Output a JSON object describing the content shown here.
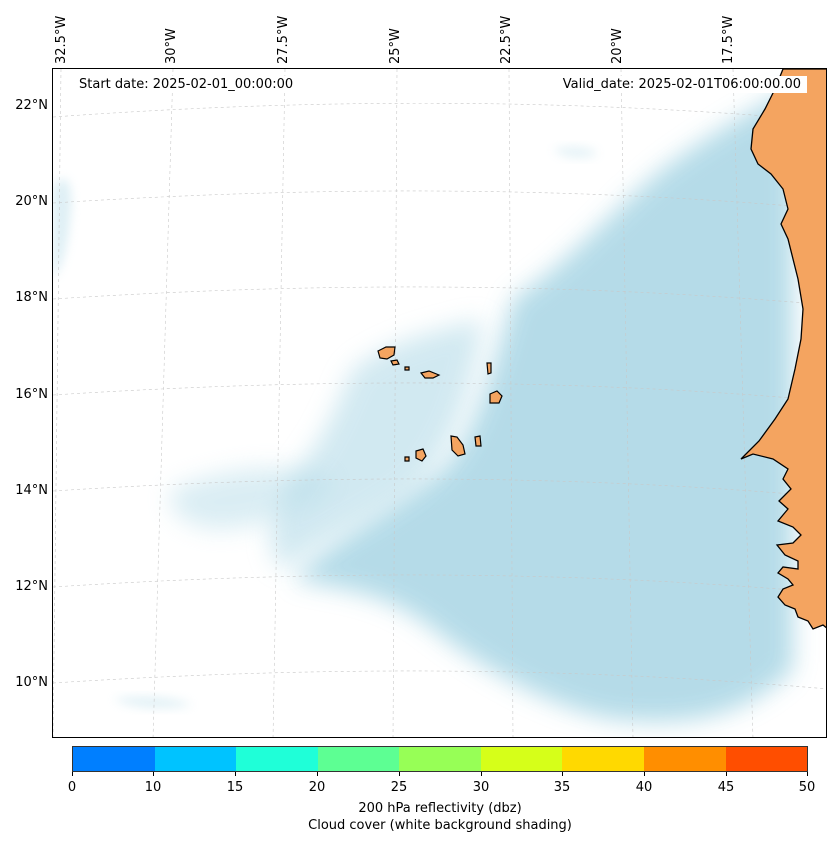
{
  "map": {
    "info_left": "Start date: 2025-02-01_00:00:00",
    "info_right": "Valid_date: 2025-02-01T06:00:00.00",
    "lon_labels": [
      "32.5°W",
      "30°W",
      "27.5°W",
      "25°W",
      "22.5°W",
      "20°W",
      "17.5°W"
    ],
    "lat_labels": [
      "22°N",
      "20°N",
      "18°N",
      "16°N",
      "14°N",
      "12°N",
      "10°N"
    ],
    "colors": {
      "land": "#f4a460",
      "cloud": "#add8e6",
      "coast": "#000000",
      "grid": "#c8c8c8"
    }
  },
  "colorbar": {
    "ticks": [
      "0",
      "10",
      "15",
      "20",
      "25",
      "30",
      "35",
      "40",
      "45",
      "50"
    ],
    "colors": [
      "#007fff",
      "#00c3ff",
      "#1fffd8",
      "#5dff93",
      "#97ff56",
      "#d6ff19",
      "#ffd900",
      "#ff8e00",
      "#ff4e00"
    ],
    "label_line1": "200 hPa reflectivity (dbz)",
    "label_line2": "Cloud cover (white background shading)"
  }
}
